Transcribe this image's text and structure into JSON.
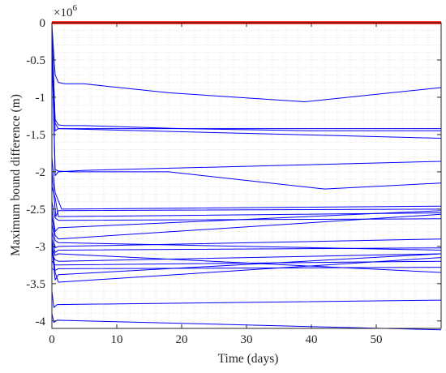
{
  "chart_data": {
    "type": "line",
    "title": "",
    "xlabel": "Time (days)",
    "ylabel": "Maximum bound difference (m)",
    "y_multiplier_base": "×10",
    "y_multiplier_exponent": "6",
    "xlim": [
      0,
      60
    ],
    "ylim": [
      -4.1,
      0
    ],
    "x_ticks": [
      0,
      10,
      20,
      30,
      40,
      50
    ],
    "x_tick_labels": [
      "0",
      "10",
      "20",
      "30",
      "40",
      "50"
    ],
    "y_ticks": [
      0,
      -0.5,
      -1,
      -1.5,
      -2,
      -2.5,
      -3,
      -3.5,
      -4
    ],
    "y_tick_labels": [
      "0",
      "-0.5",
      "-1",
      "-1.5",
      "-2",
      "-2.5",
      "-3",
      "-3.5",
      "-4"
    ],
    "grid": "minor dotted",
    "colors": {
      "zero_line": "#ff0000",
      "series": "#0000ff"
    },
    "zero_line": {
      "x": [
        0,
        60
      ],
      "y": [
        0,
        0
      ]
    },
    "series": [
      {
        "x": [
          0,
          0.2,
          0.5,
          1,
          2,
          5,
          18,
          39,
          60
        ],
        "y": [
          -0.02,
          -0.3,
          -0.7,
          -0.8,
          -0.82,
          -0.82,
          -0.94,
          -1.06,
          -0.87
        ]
      },
      {
        "x": [
          0,
          0.5,
          1,
          2,
          5,
          20,
          40,
          60
        ],
        "y": [
          -0.1,
          -1.3,
          -1.37,
          -1.38,
          -1.38,
          -1.42,
          -1.45,
          -1.45
        ]
      },
      {
        "x": [
          0,
          0.5,
          1,
          60
        ],
        "y": [
          -0.1,
          -1.35,
          -1.42,
          -1.55
        ]
      },
      {
        "x": [
          0,
          0.5,
          1,
          5,
          60
        ],
        "y": [
          -0.1,
          -1.45,
          -1.42,
          -1.42,
          -1.42
        ]
      },
      {
        "x": [
          0,
          0.5,
          1,
          3,
          18,
          42,
          60
        ],
        "y": [
          -0.3,
          -1.97,
          -1.99,
          -2.0,
          -2.0,
          -2.23,
          -2.15
        ]
      },
      {
        "x": [
          0,
          0.5,
          1,
          5,
          60
        ],
        "y": [
          -0.3,
          -2.05,
          -2.0,
          -1.98,
          -1.86
        ]
      },
      {
        "x": [
          0,
          0.5,
          1.5,
          60
        ],
        "y": [
          -1.8,
          -2.28,
          -2.5,
          -2.46
        ]
      },
      {
        "x": [
          0,
          0.6,
          1,
          60
        ],
        "y": [
          -2.0,
          -2.6,
          -2.52,
          -2.5
        ]
      },
      {
        "x": [
          0,
          0.5,
          1,
          60
        ],
        "y": [
          -2.2,
          -2.35,
          -2.6,
          -2.55
        ]
      },
      {
        "x": [
          0,
          0.5,
          1,
          60
        ],
        "y": [
          -2.4,
          -2.62,
          -2.65,
          -2.63
        ]
      },
      {
        "x": [
          0,
          0.5,
          1,
          60
        ],
        "y": [
          -2.5,
          -2.8,
          -2.75,
          -2.52
        ]
      },
      {
        "x": [
          0,
          0.5,
          1,
          60
        ],
        "y": [
          -2.6,
          -2.85,
          -2.9,
          -2.57
        ]
      },
      {
        "x": [
          0,
          0.5,
          1,
          60
        ],
        "y": [
          -2.7,
          -2.92,
          -2.95,
          -3.05
        ]
      },
      {
        "x": [
          0,
          0.5,
          1,
          60
        ],
        "y": [
          -2.8,
          -3.02,
          -3.0,
          -2.9
        ]
      },
      {
        "x": [
          0,
          0.5,
          1,
          60
        ],
        "y": [
          -2.9,
          -3.08,
          -3.05,
          -3.02
        ]
      },
      {
        "x": [
          0,
          0.5,
          1,
          60
        ],
        "y": [
          -3.0,
          -3.12,
          -3.1,
          -3.35
        ]
      },
      {
        "x": [
          0,
          0.5,
          1,
          60
        ],
        "y": [
          -3.1,
          -3.18,
          -3.2,
          -3.1
        ]
      },
      {
        "x": [
          0,
          0.5,
          1,
          60
        ],
        "y": [
          -3.2,
          -3.25,
          -3.25,
          -3.2
        ]
      },
      {
        "x": [
          0,
          0.5,
          1,
          60
        ],
        "y": [
          -3.3,
          -3.32,
          -3.3,
          -3.28
        ]
      },
      {
        "x": [
          0,
          0.5,
          1,
          60
        ],
        "y": [
          -3.0,
          -3.45,
          -3.38,
          -3.1
        ]
      },
      {
        "x": [
          0,
          0.5,
          1,
          60
        ],
        "y": [
          -2.9,
          -3.35,
          -3.48,
          -3.15
        ]
      },
      {
        "x": [
          0,
          0.3,
          0.8,
          60
        ],
        "y": [
          -3.6,
          -3.82,
          -3.78,
          -3.72
        ]
      },
      {
        "x": [
          0,
          0.3,
          0.8,
          60
        ],
        "y": [
          -3.9,
          -4.02,
          -3.99,
          -4.12
        ]
      }
    ]
  }
}
